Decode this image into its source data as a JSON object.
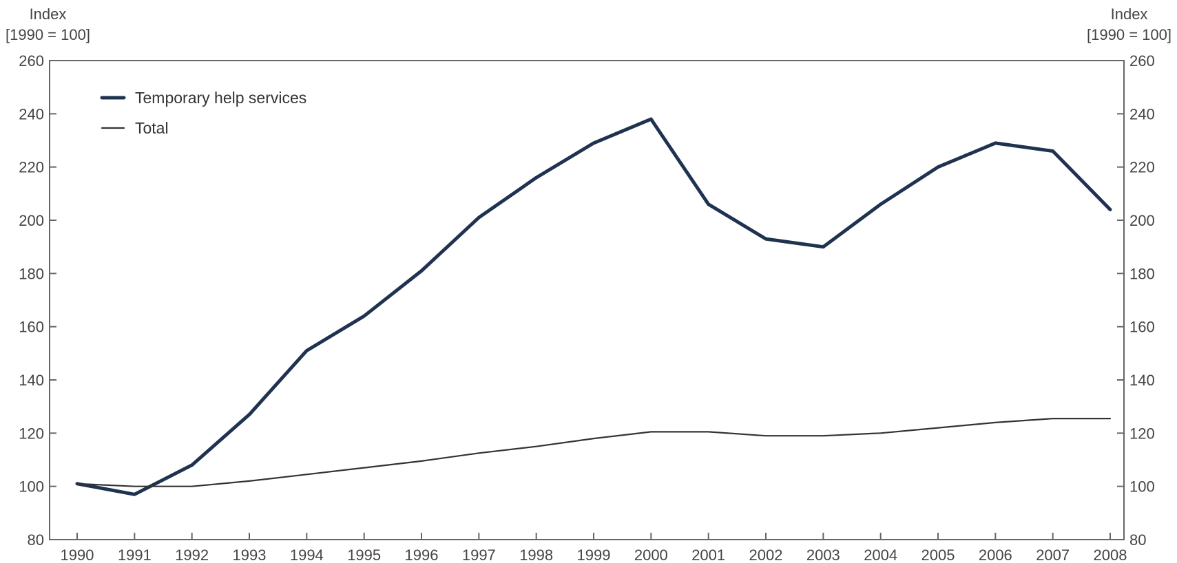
{
  "chart_data": {
    "type": "line",
    "title": "",
    "y_axis_left": {
      "label_line1": "Index",
      "label_line2": "[1990 = 100]"
    },
    "y_axis_right": {
      "label_line1": "Index",
      "label_line2": "[1990 = 100]"
    },
    "ylim": [
      80,
      260
    ],
    "yticks": [
      80,
      100,
      120,
      140,
      160,
      180,
      200,
      220,
      240,
      260
    ],
    "x": [
      1990,
      1991,
      1992,
      1993,
      1994,
      1995,
      1996,
      1997,
      1998,
      1999,
      2000,
      2001,
      2002,
      2003,
      2004,
      2005,
      2006,
      2007,
      2008
    ],
    "x_tick_labels": [
      "1990",
      "1991",
      "1992",
      "1993",
      "1994",
      "1995",
      "1996",
      "1997",
      "1998",
      "1999",
      "2000",
      "2001",
      "2002",
      "2003",
      "2004",
      "2005",
      "2006",
      "2007",
      "2008"
    ],
    "legend_position": "top-left",
    "grid": false,
    "series": [
      {
        "name": "Temporary help services",
        "color": "#1f3350",
        "values": [
          101,
          97,
          108,
          127,
          151,
          164,
          181,
          201,
          216,
          229,
          238,
          206,
          193,
          190,
          206,
          220,
          229,
          226,
          204
        ]
      },
      {
        "name": "Total",
        "color": "#333333",
        "values": [
          101,
          100,
          100,
          102,
          104.5,
          107,
          109.5,
          112.5,
          115,
          118,
          120.5,
          120.5,
          119,
          119,
          120,
          122,
          124,
          125.5,
          125.5
        ]
      }
    ]
  }
}
